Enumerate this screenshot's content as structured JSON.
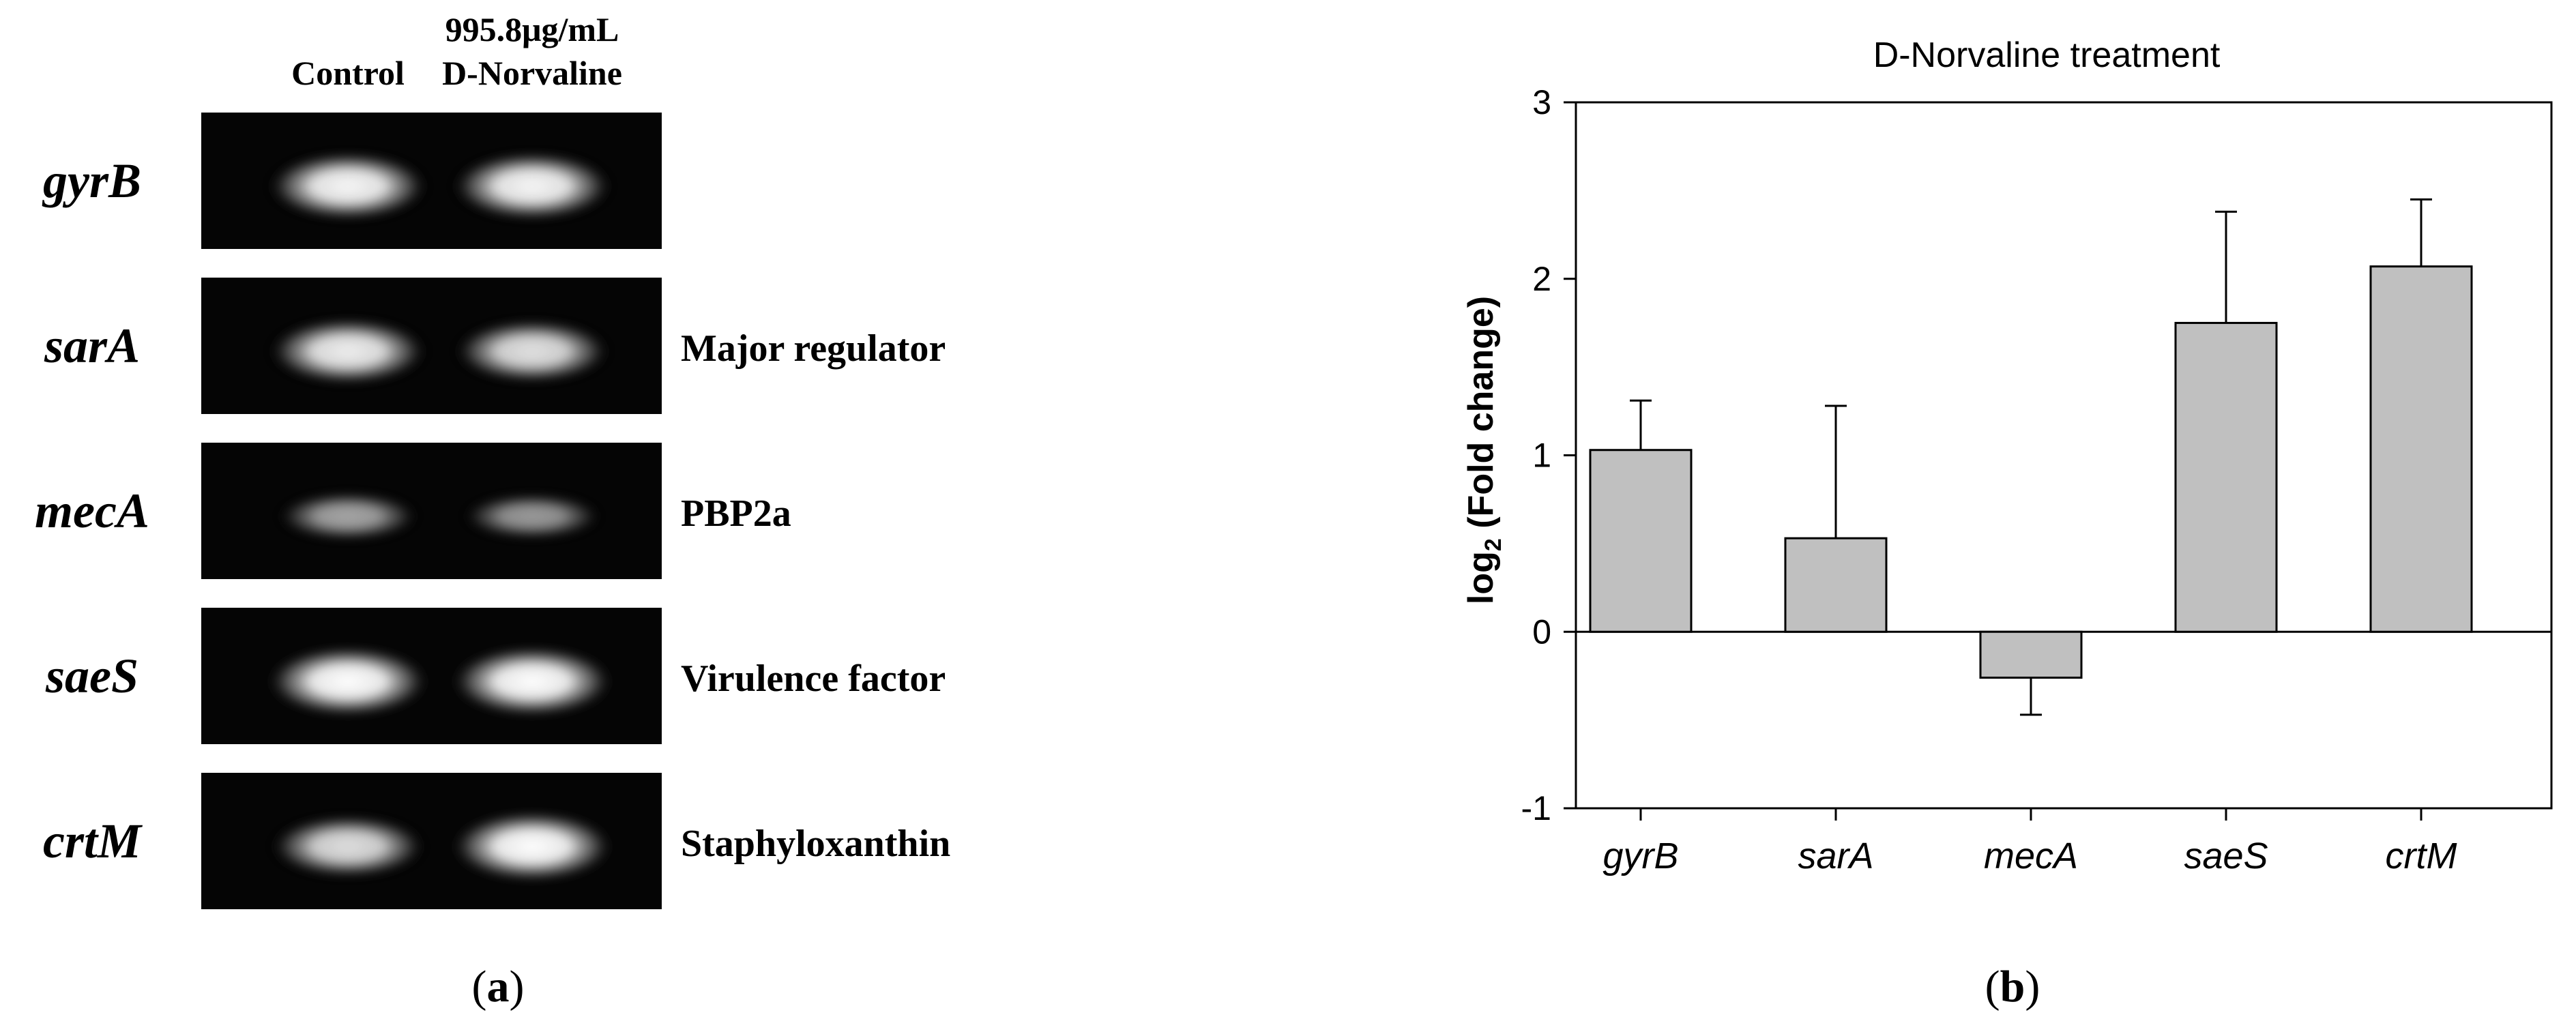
{
  "gel_panel": {
    "lane_headers": {
      "control": "Control",
      "treatment_line1": "995.8μg/mL",
      "treatment_line2": "D-Norvaline"
    },
    "rows": [
      {
        "gene": "gyrB",
        "annotation": "",
        "bands": [
          0.95,
          0.95
        ]
      },
      {
        "gene": "sarA",
        "annotation": "Major regulator",
        "bands": [
          0.9,
          0.82
        ]
      },
      {
        "gene": "mecA",
        "annotation": "PBP2a",
        "bands": [
          0.45,
          0.38
        ]
      },
      {
        "gene": "saeS",
        "annotation": "Virulence factor",
        "bands": [
          1.0,
          1.0
        ]
      },
      {
        "gene": "crtM",
        "annotation": "Staphyloxanthin",
        "bands": [
          0.8,
          1.0
        ]
      }
    ],
    "caption_open": "(",
    "caption_letter": "a",
    "caption_close": ")"
  },
  "chart_data": {
    "type": "bar",
    "title": "D-Norvaline treatment",
    "ylabel_main": "log",
    "ylabel_sub": "2",
    "ylabel_rest": " (Fold change)",
    "xlabel": "",
    "categories": [
      "gyrB",
      "sarA",
      "mecA",
      "saeS",
      "crtM"
    ],
    "values": [
      1.03,
      0.53,
      -0.26,
      1.75,
      2.07
    ],
    "error_bars": [
      0.28,
      0.75,
      0.21,
      0.63,
      0.38
    ],
    "ylim": [
      -1,
      3
    ],
    "yticks": [
      "-1",
      "0",
      "1",
      "2",
      "3"
    ],
    "bar_color": "#c0c0c0",
    "grid": false,
    "legend": "none"
  },
  "chart_caption": {
    "open": "(",
    "letter": "b",
    "close": ")"
  }
}
